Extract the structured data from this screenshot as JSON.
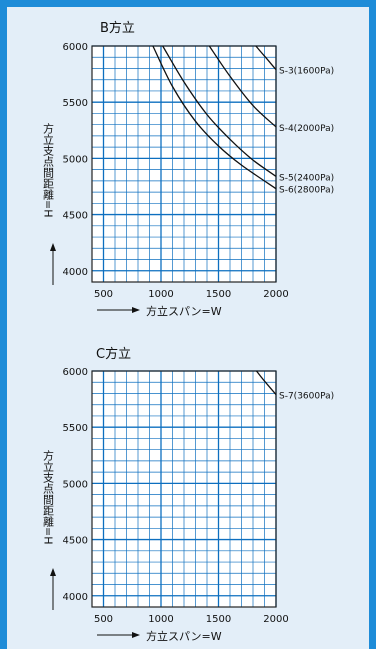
{
  "chart_data": [
    {
      "type": "line",
      "title": "B方立",
      "xlabel": "方立スパン=W",
      "ylabel": "方立支点間距離=H",
      "xlim": [
        400,
        2000
      ],
      "ylim": [
        3900,
        6000
      ],
      "x_ticks": [
        500,
        1000,
        1500,
        2000
      ],
      "y_ticks": [
        4000,
        4500,
        5000,
        5500,
        6000
      ],
      "grid": true,
      "series": [
        {
          "name": "S-3(1600Pa)",
          "points": [
            [
              1825,
              6000
            ],
            [
              1900,
              5910
            ],
            [
              2000,
              5790
            ]
          ]
        },
        {
          "name": "S-4(2000Pa)",
          "points": [
            [
              1420,
              6000
            ],
            [
              1600,
              5730
            ],
            [
              1800,
              5470
            ],
            [
              2000,
              5280
            ]
          ]
        },
        {
          "name": "S-5(2400Pa)",
          "points": [
            [
              1015,
              6000
            ],
            [
              1200,
              5680
            ],
            [
              1400,
              5390
            ],
            [
              1600,
              5170
            ],
            [
              1800,
              4985
            ],
            [
              2000,
              4840
            ]
          ]
        },
        {
          "name": "S-6(2800Pa)",
          "points": [
            [
              930,
              6000
            ],
            [
              1100,
              5640
            ],
            [
              1300,
              5330
            ],
            [
              1500,
              5110
            ],
            [
              1700,
              4940
            ],
            [
              2000,
              4730
            ]
          ]
        }
      ]
    },
    {
      "type": "line",
      "title": "C方立",
      "xlabel": "方立スパン=W",
      "ylabel": "方立支点間距離=H",
      "xlim": [
        400,
        2000
      ],
      "ylim": [
        3900,
        6000
      ],
      "x_ticks": [
        500,
        1000,
        1500,
        2000
      ],
      "y_ticks": [
        4000,
        4500,
        5000,
        5500,
        6000
      ],
      "grid": true,
      "series": [
        {
          "name": "S-7(3600Pa)",
          "points": [
            [
              1830,
              6000
            ],
            [
              1900,
              5910
            ],
            [
              2000,
              5790
            ]
          ]
        }
      ]
    }
  ],
  "colors": {
    "frame": "#1e8cd8",
    "panel": "#e3eef8",
    "grid_fill": "#ffffff",
    "grid_line": "#0d6fbf",
    "curve": "#111111"
  }
}
